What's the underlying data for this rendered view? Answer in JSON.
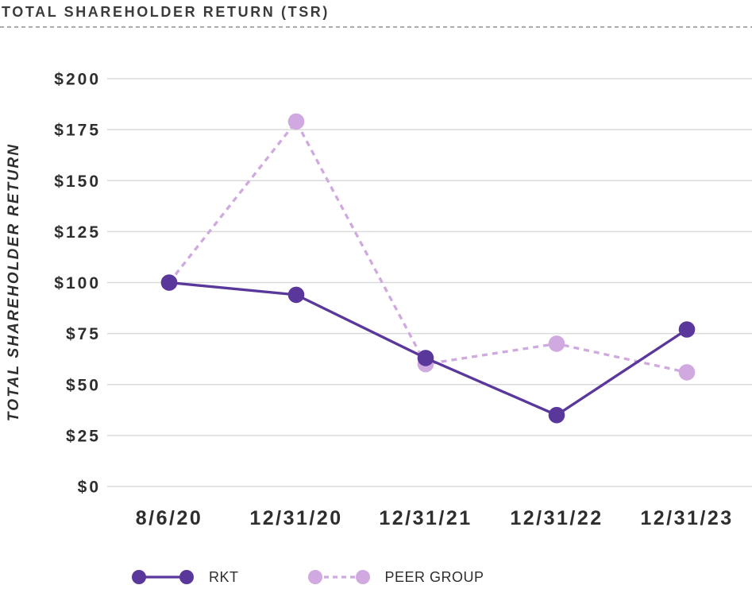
{
  "chart_data": {
    "type": "line",
    "title": "TOTAL SHAREHOLDER RETURN (TSR)",
    "ylabel": "TOTAL SHAREHOLDER RETURN",
    "xlabel": "",
    "categories": [
      "8/6/20",
      "12/31/20",
      "12/31/21",
      "12/31/22",
      "12/31/23"
    ],
    "series": [
      {
        "name": "RKT",
        "values": [
          100,
          94,
          63,
          35,
          77
        ],
        "color": "#5a379b",
        "line_style": "solid"
      },
      {
        "name": "PEER GROUP",
        "values": [
          100,
          179,
          60,
          70,
          56
        ],
        "color": "#cfa9df",
        "line_style": "dashed"
      }
    ],
    "ylim": [
      0,
      200
    ],
    "ytick_interval": 25,
    "ytick_labels_top_to_bottom": [
      "$200",
      "$175",
      "$150",
      "$125",
      "$100",
      "$75",
      "$50",
      "$25",
      "$0"
    ],
    "grid": "horizontal",
    "gridline_color": "#dbdbdb",
    "text_color": "#2e2e30",
    "legend_position": "bottom"
  },
  "separator": {
    "style": "dashed",
    "color": "#ababab"
  }
}
